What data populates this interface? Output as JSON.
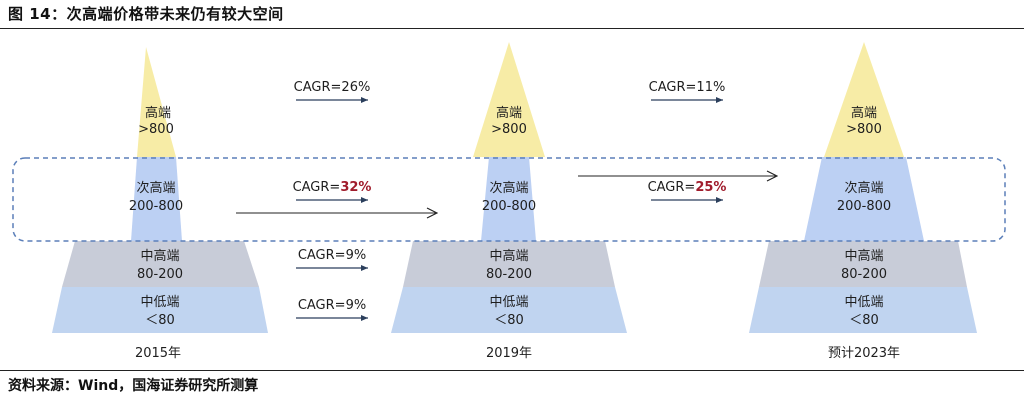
{
  "figure": {
    "title": "图 14：次高端价格带未来仍有较大空间",
    "source": "资料来源：Wind，国海证券研究所测算"
  },
  "colors": {
    "high": "#f7eca6",
    "sub_high": "#bcd0f3",
    "mid_high": "#c8ccd8",
    "mid_low": "#c0d4f0",
    "dashed_box": "#5b7fb9",
    "cagr_highlight": "#a01c2c",
    "text": "#1e1e1e"
  },
  "pyramids": [
    {
      "year": "2015年",
      "tiers": {
        "high": {
          "name": "高端",
          "range": ">800"
        },
        "sub_high": {
          "name": "次高端",
          "range": "200-800"
        },
        "mid_high": {
          "name": "中高端",
          "range": "80-200"
        },
        "mid_low": {
          "name": "中低端",
          "range": "＜80"
        }
      }
    },
    {
      "year": "2019年",
      "tiers": {
        "high": {
          "name": "高端",
          "range": ">800"
        },
        "sub_high": {
          "name": "次高端",
          "range": "200-800"
        },
        "mid_high": {
          "name": "中高端",
          "range": "80-200"
        },
        "mid_low": {
          "name": "中低端",
          "range": "＜80"
        }
      }
    },
    {
      "year": "预计2023年",
      "tiers": {
        "high": {
          "name": "高端",
          "range": ">800"
        },
        "sub_high": {
          "name": "次高端",
          "range": "200-800"
        },
        "mid_high": {
          "name": "中高端",
          "range": "80-200"
        },
        "mid_low": {
          "name": "中低端",
          "range": "＜80"
        }
      }
    }
  ],
  "cagr": {
    "prefix": "CAGR=",
    "period1": {
      "high": "26%",
      "sub_high": "32%",
      "mid_high": "9%",
      "mid_low": "9%"
    },
    "period2": {
      "high": "11%",
      "sub_high": "25%"
    }
  }
}
